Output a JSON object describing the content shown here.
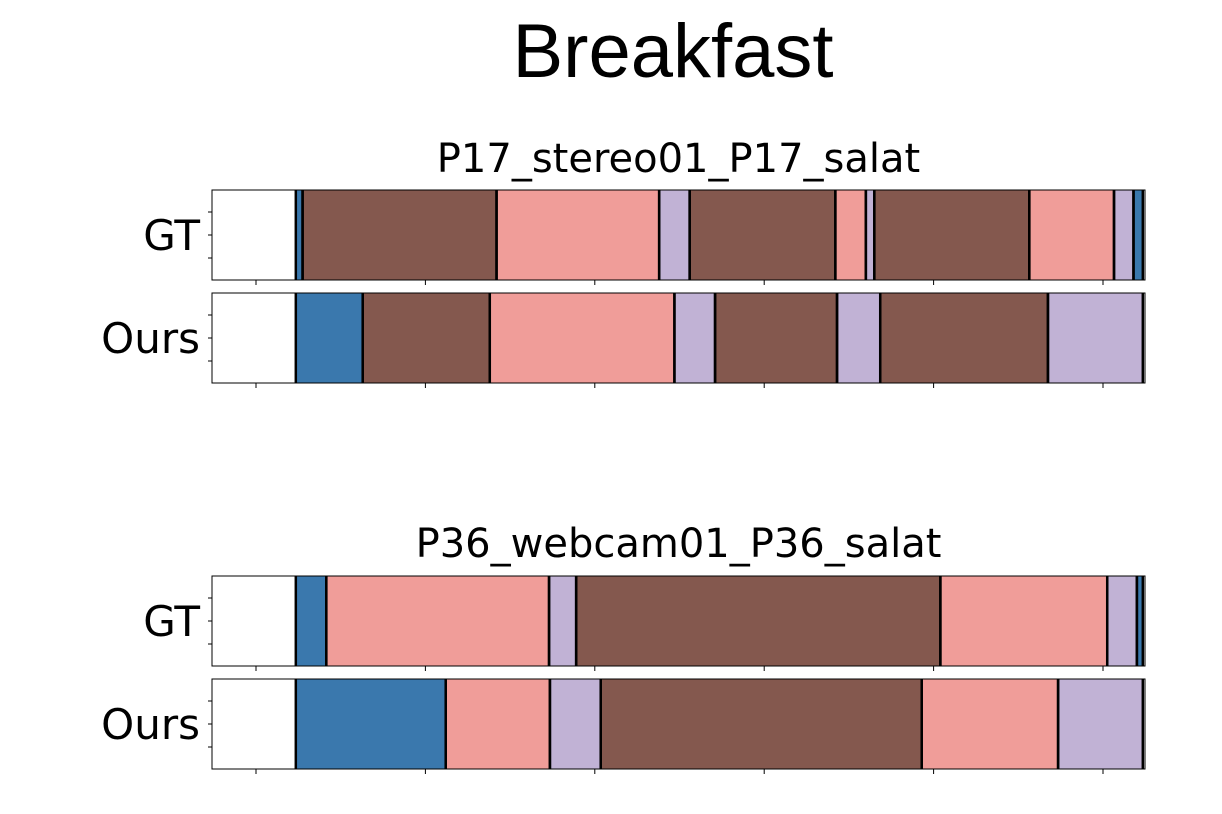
{
  "title": "Breakfast",
  "colors": {
    "background": "#ffffff",
    "steelblue": "#3a78ad",
    "brown": "#84584e",
    "salmon": "#f09d99",
    "lavender": "#c1b2d5",
    "border": "#000000"
  },
  "chart_data": [
    {
      "type": "segmentation",
      "title": "P17_stereo01_P17_salat",
      "x_range": [
        0,
        1
      ],
      "rows": [
        {
          "label": "GT",
          "segments": [
            {
              "start": 0.047,
              "end": 0.055,
              "color": "#3a78ad"
            },
            {
              "start": 0.055,
              "end": 0.284,
              "color": "#84584e"
            },
            {
              "start": 0.284,
              "end": 0.476,
              "color": "#f09d99"
            },
            {
              "start": 0.476,
              "end": 0.512,
              "color": "#c1b2d5"
            },
            {
              "start": 0.512,
              "end": 0.684,
              "color": "#84584e"
            },
            {
              "start": 0.684,
              "end": 0.72,
              "color": "#f09d99"
            },
            {
              "start": 0.72,
              "end": 0.73,
              "color": "#c1b2d5"
            },
            {
              "start": 0.73,
              "end": 0.913,
              "color": "#84584e"
            },
            {
              "start": 0.913,
              "end": 1.013,
              "color": "#f09d99"
            },
            {
              "start": 1.013,
              "end": 1.036,
              "color": "#c1b2d5"
            },
            {
              "start": 1.036,
              "end": 1.047,
              "color": "#3a78ad"
            }
          ]
        },
        {
          "label": "Ours",
          "segments": [
            {
              "start": 0.047,
              "end": 0.126,
              "color": "#3a78ad"
            },
            {
              "start": 0.126,
              "end": 0.276,
              "color": "#84584e"
            },
            {
              "start": 0.276,
              "end": 0.494,
              "color": "#f09d99"
            },
            {
              "start": 0.494,
              "end": 0.542,
              "color": "#c1b2d5"
            },
            {
              "start": 0.542,
              "end": 0.686,
              "color": "#84584e"
            },
            {
              "start": 0.686,
              "end": 0.737,
              "color": "#c1b2d5"
            },
            {
              "start": 0.737,
              "end": 0.935,
              "color": "#84584e"
            },
            {
              "start": 0.935,
              "end": 1.047,
              "color": "#c1b2d5"
            }
          ]
        }
      ]
    },
    {
      "type": "segmentation",
      "title": "P36_webcam01_P36_salat",
      "x_range": [
        0,
        1
      ],
      "rows": [
        {
          "label": "GT",
          "segments": [
            {
              "start": 0.047,
              "end": 0.083,
              "color": "#3a78ad"
            },
            {
              "start": 0.083,
              "end": 0.346,
              "color": "#f09d99"
            },
            {
              "start": 0.346,
              "end": 0.378,
              "color": "#c1b2d5"
            },
            {
              "start": 0.378,
              "end": 0.808,
              "color": "#84584e"
            },
            {
              "start": 0.808,
              "end": 1.005,
              "color": "#f09d99"
            },
            {
              "start": 1.005,
              "end": 1.04,
              "color": "#c1b2d5"
            },
            {
              "start": 1.04,
              "end": 1.047,
              "color": "#3a78ad"
            }
          ]
        },
        {
          "label": "Ours",
          "segments": [
            {
              "start": 0.047,
              "end": 0.224,
              "color": "#3a78ad"
            },
            {
              "start": 0.224,
              "end": 0.347,
              "color": "#f09d99"
            },
            {
              "start": 0.347,
              "end": 0.407,
              "color": "#c1b2d5"
            },
            {
              "start": 0.407,
              "end": 0.786,
              "color": "#84584e"
            },
            {
              "start": 0.786,
              "end": 0.947,
              "color": "#f09d99"
            },
            {
              "start": 0.947,
              "end": 1.047,
              "color": "#c1b2d5"
            }
          ]
        }
      ]
    }
  ]
}
